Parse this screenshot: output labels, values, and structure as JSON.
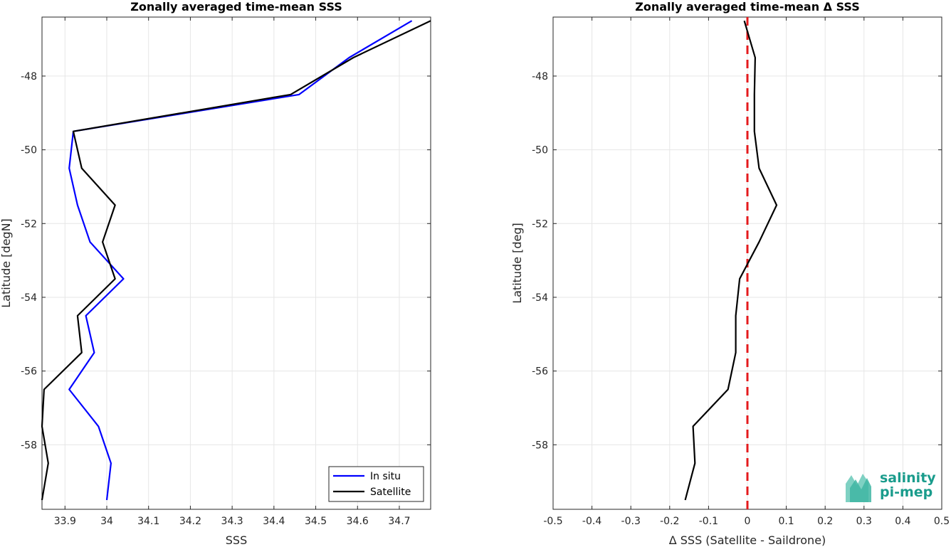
{
  "colors": {
    "in_situ": "#0000ff",
    "satellite": "#000000",
    "zero_line": "#e41a1c",
    "grid": "#e6e6e6",
    "logo": "#1a9c8c"
  },
  "logo": {
    "line1": "salinity",
    "line2": "pi-mep"
  },
  "chart_data": [
    {
      "type": "line",
      "title": "Zonally averaged time-mean SSS",
      "xlabel": "SSS",
      "ylabel": "Latitude [degN]",
      "xlim": [
        33.845,
        34.775
      ],
      "ylim": [
        -59.75,
        -46.4
      ],
      "xticks": [
        33.9,
        34,
        34.1,
        34.2,
        34.3,
        34.4,
        34.5,
        34.6,
        34.7
      ],
      "xtick_labels": [
        "33.9",
        "34",
        "34.1",
        "34.2",
        "34.3",
        "34.4",
        "34.5",
        "34.6",
        "34.7"
      ],
      "yticks": [
        -48,
        -50,
        -52,
        -54,
        -56,
        -58
      ],
      "ytick_labels": [
        "-48",
        "-50",
        "-52",
        "-54",
        "-56",
        "-58"
      ],
      "grid": true,
      "legend": "bottom-right",
      "series": [
        {
          "name": "In situ",
          "color": "#0000ff",
          "points": [
            [
              34.73,
              -46.5
            ],
            [
              34.58,
              -47.5
            ],
            [
              34.46,
              -48.5
            ],
            [
              33.92,
              -49.5
            ],
            [
              33.91,
              -50.5
            ],
            [
              33.93,
              -51.5
            ],
            [
              33.96,
              -52.5
            ],
            [
              34.04,
              -53.5
            ],
            [
              33.95,
              -54.5
            ],
            [
              33.97,
              -55.5
            ],
            [
              33.91,
              -56.5
            ],
            [
              33.98,
              -57.5
            ],
            [
              34.01,
              -58.5
            ],
            [
              34.0,
              -59.5
            ]
          ]
        },
        {
          "name": "Satellite",
          "color": "#000000",
          "points": [
            [
              34.775,
              -46.5
            ],
            [
              34.59,
              -47.5
            ],
            [
              34.44,
              -48.5
            ],
            [
              33.92,
              -49.5
            ],
            [
              33.94,
              -50.5
            ],
            [
              34.02,
              -51.5
            ],
            [
              33.99,
              -52.5
            ],
            [
              34.02,
              -53.5
            ],
            [
              33.93,
              -54.5
            ],
            [
              33.94,
              -55.5
            ],
            [
              33.85,
              -56.5
            ],
            [
              33.845,
              -57.5
            ],
            [
              33.86,
              -58.5
            ],
            [
              33.845,
              -59.5
            ]
          ]
        }
      ]
    },
    {
      "type": "line",
      "title": "Zonally averaged time-mean Δ SSS",
      "xlabel": "Δ SSS (Satellite - Saildrone)",
      "ylabel": "Latitude [deg]",
      "xlim": [
        -0.5,
        0.5
      ],
      "ylim": [
        -59.75,
        -46.4
      ],
      "xticks": [
        -0.5,
        -0.4,
        -0.3,
        -0.2,
        -0.1,
        0,
        0.1,
        0.2,
        0.3,
        0.4,
        0.5
      ],
      "xtick_labels": [
        "-0.5",
        "-0.4",
        "-0.3",
        "-0.2",
        "-0.1",
        "0",
        "0.1",
        "0.2",
        "0.3",
        "0.4",
        "0.5"
      ],
      "yticks": [
        -48,
        -50,
        -52,
        -54,
        -56,
        -58
      ],
      "ytick_labels": [
        "-48",
        "-50",
        "-52",
        "-54",
        "-56",
        "-58"
      ],
      "grid": true,
      "reference_line": {
        "x": 0,
        "style": "dashed",
        "color": "#e41a1c"
      },
      "series": [
        {
          "color": "#000000",
          "points": [
            [
              -0.008,
              -46.5
            ],
            [
              0.02,
              -47.5
            ],
            [
              0.018,
              -48.5
            ],
            [
              0.018,
              -49.5
            ],
            [
              0.03,
              -50.5
            ],
            [
              0.075,
              -51.5
            ],
            [
              0.03,
              -52.5
            ],
            [
              -0.02,
              -53.5
            ],
            [
              -0.03,
              -54.5
            ],
            [
              -0.03,
              -55.5
            ],
            [
              -0.05,
              -56.5
            ],
            [
              -0.14,
              -57.5
            ],
            [
              -0.135,
              -58.5
            ],
            [
              -0.16,
              -59.5
            ]
          ]
        }
      ]
    }
  ]
}
